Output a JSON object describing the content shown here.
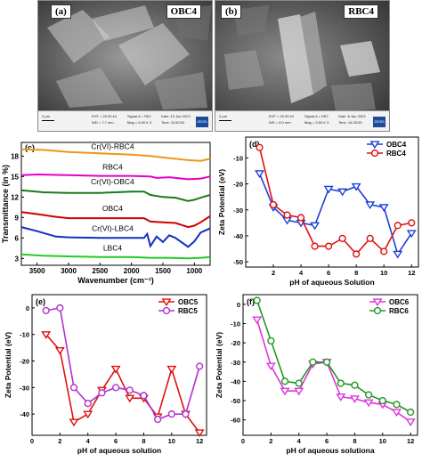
{
  "sem": [
    {
      "letter": "(a)",
      "label": "OBC4",
      "scale": "2 μm",
      "meta1": "EHT = 20.00 kV",
      "meta2": "WD = 7.7 mm",
      "meta3": "Signal A = SE2",
      "meta4": "Mag = 6.00 K X",
      "meta5": "Date :19 Jan 2023",
      "meta6": "Time :11:50:51",
      "brand": "ZEISS"
    },
    {
      "letter": "(b)",
      "label": "RBC4",
      "scale": "2 μm",
      "meta1": "EHT = 20.00 kV",
      "meta2": "WD = 8.0 mm",
      "meta3": "Signal A = SE2",
      "meta4": "Mag = 3.50 K X",
      "meta5": "Date :6 Jan 2023",
      "meta6": "Time :14:33:53",
      "brand": "ZEISS"
    }
  ],
  "chart_data": [
    {
      "panel": "(c)",
      "type": "line",
      "xlabel": "Wavenumber (cm⁻¹)",
      "ylabel": "Transmittance (in %)",
      "xticks": [
        "3500",
        "3000",
        "2500",
        "2000",
        "1500",
        "1000"
      ],
      "yticks": [
        "3",
        "6",
        "9",
        "12",
        "15",
        "18"
      ],
      "xlim": [
        3750,
        750
      ],
      "ylim": [
        2,
        20
      ],
      "series": [
        {
          "name": "Cr(VI)-RBC4",
          "color": "#f0951a",
          "points": [
            [
              3750,
              19.0
            ],
            [
              3400,
              18.9
            ],
            [
              3000,
              18.6
            ],
            [
              2500,
              18.4
            ],
            [
              2000,
              18.2
            ],
            [
              1700,
              18.0
            ],
            [
              1400,
              17.7
            ],
            [
              1100,
              17.4
            ],
            [
              900,
              17.3
            ],
            [
              750,
              17.6
            ]
          ]
        },
        {
          "name": "RBC4",
          "color": "#e000c8",
          "points": [
            [
              3750,
              15.2
            ],
            [
              3500,
              15.3
            ],
            [
              3000,
              15.2
            ],
            [
              2500,
              15.1
            ],
            [
              2000,
              15.1
            ],
            [
              1700,
              15.0
            ],
            [
              1600,
              14.8
            ],
            [
              1400,
              14.9
            ],
            [
              1100,
              14.6
            ],
            [
              900,
              14.7
            ],
            [
              750,
              15.0
            ]
          ]
        },
        {
          "name": "Cr(VI)-OBC4",
          "color": "#1a7a1a",
          "points": [
            [
              3750,
              13.0
            ],
            [
              3400,
              12.7
            ],
            [
              3000,
              12.6
            ],
            [
              2500,
              12.6
            ],
            [
              2000,
              12.8
            ],
            [
              1800,
              12.8
            ],
            [
              1700,
              12.3
            ],
            [
              1500,
              12.0
            ],
            [
              1300,
              11.9
            ],
            [
              1100,
              11.4
            ],
            [
              1000,
              11.6
            ],
            [
              900,
              11.9
            ],
            [
              750,
              12.3
            ]
          ]
        },
        {
          "name": "OBC4",
          "color": "#d00000",
          "points": [
            [
              3750,
              9.8
            ],
            [
              3500,
              9.5
            ],
            [
              3200,
              9.1
            ],
            [
              3000,
              8.9
            ],
            [
              2500,
              8.9
            ],
            [
              2000,
              8.9
            ],
            [
              1800,
              8.9
            ],
            [
              1700,
              8.4
            ],
            [
              1500,
              8.3
            ],
            [
              1300,
              8.2
            ],
            [
              1100,
              7.6
            ],
            [
              1000,
              7.8
            ],
            [
              900,
              8.3
            ],
            [
              750,
              9.2
            ]
          ]
        },
        {
          "name": "Cr(VI)-LBC4",
          "color": "#1030c0",
          "points": [
            [
              3750,
              7.6
            ],
            [
              3500,
              7.0
            ],
            [
              3200,
              6.2
            ],
            [
              3000,
              6.1
            ],
            [
              2500,
              6.0
            ],
            [
              2000,
              6.0
            ],
            [
              1800,
              6.0
            ],
            [
              1750,
              6.6
            ],
            [
              1700,
              4.8
            ],
            [
              1600,
              6.2
            ],
            [
              1500,
              5.4
            ],
            [
              1400,
              6.4
            ],
            [
              1300,
              6.0
            ],
            [
              1100,
              4.7
            ],
            [
              1000,
              5.5
            ],
            [
              900,
              6.8
            ],
            [
              750,
              7.4
            ]
          ]
        },
        {
          "name": "LBC4",
          "color": "#22cc22",
          "points": [
            [
              3750,
              3.6
            ],
            [
              3400,
              3.4
            ],
            [
              3000,
              3.3
            ],
            [
              2500,
              3.2
            ],
            [
              2000,
              3.2
            ],
            [
              1700,
              3.1
            ],
            [
              1400,
              3.1
            ],
            [
              1100,
              3.0
            ],
            [
              900,
              3.1
            ],
            [
              750,
              3.2
            ]
          ]
        }
      ]
    },
    {
      "panel": "(d)",
      "type": "line",
      "xlabel": "pH of aqueous Solution",
      "ylabel": "Zeta Potential (eV)",
      "xticks": [
        "2",
        "4",
        "6",
        "8",
        "10",
        "12"
      ],
      "yticks": [
        "-50",
        "-40",
        "-30",
        "-20",
        "-10"
      ],
      "xlim": [
        0,
        12.5
      ],
      "ylim": [
        -52,
        -2
      ],
      "series": [
        {
          "name": "OBC4",
          "color": "#1c3fd6",
          "marker": "triangle-down",
          "x": [
            1,
            2,
            3,
            4,
            5,
            6,
            7,
            8,
            9,
            10,
            11,
            12
          ],
          "y": [
            -16,
            -29,
            -34,
            -35,
            -36,
            -22,
            -23,
            -21,
            -28,
            -29,
            -47,
            -39
          ]
        },
        {
          "name": "RBC4",
          "color": "#e01010",
          "marker": "circle",
          "x": [
            1,
            2,
            3,
            4,
            5,
            6,
            7,
            8,
            9,
            10,
            11,
            12
          ],
          "y": [
            -6,
            -28,
            -32,
            -33,
            -44,
            -44,
            -41,
            -47,
            -41,
            -46,
            -36,
            -35
          ]
        }
      ]
    },
    {
      "panel": "(e)",
      "type": "line",
      "xlabel": "pH of aqueous solution",
      "ylabel": "Zeta Potential (eV)",
      "xticks": [
        "0",
        "2",
        "4",
        "6",
        "8",
        "10",
        "12"
      ],
      "yticks": [
        "-40",
        "-30",
        "-20",
        "-10",
        "0"
      ],
      "xlim": [
        0,
        12.5
      ],
      "ylim": [
        -48,
        5
      ],
      "series": [
        {
          "name": "OBC5",
          "color": "#e01010",
          "marker": "triangle-down",
          "x": [
            1,
            2,
            3,
            4,
            5,
            6,
            7,
            8,
            9,
            10,
            11,
            12
          ],
          "y": [
            -10,
            -16,
            -43,
            -40,
            -31,
            -23,
            -34,
            -34,
            -41,
            -23,
            -40,
            -47
          ]
        },
        {
          "name": "RBC5",
          "color": "#b030d0",
          "marker": "circle",
          "x": [
            1,
            2,
            3,
            4,
            5,
            6,
            7,
            8,
            9,
            10,
            11,
            12
          ],
          "y": [
            -1,
            0,
            -30,
            -36,
            -32,
            -30,
            -31,
            -33,
            -42,
            -40,
            -40,
            -22
          ]
        }
      ]
    },
    {
      "panel": "(f)",
      "type": "line",
      "xlabel": "pH of aqueous solutiona",
      "ylabel": "Zeta Potential (eV)",
      "xticks": [
        "0",
        "2",
        "4",
        "6",
        "8",
        "10",
        "12"
      ],
      "yticks": [
        "-60",
        "-50",
        "-40",
        "-30",
        "-20",
        "-10",
        "0"
      ],
      "xlim": [
        0,
        12.5
      ],
      "ylim": [
        -68,
        5
      ],
      "series": [
        {
          "name": "OBC6",
          "color": "#e033e0",
          "marker": "triangle-down",
          "x": [
            1,
            2,
            3,
            4,
            5,
            6,
            7,
            8,
            9,
            10,
            11,
            12
          ],
          "y": [
            -8,
            -32,
            -45,
            -45,
            -31,
            -30,
            -48,
            -49,
            -51,
            -52,
            -56,
            -61
          ]
        },
        {
          "name": "RBC6",
          "color": "#229922",
          "marker": "circle",
          "x": [
            1,
            2,
            3,
            4,
            5,
            6,
            7,
            8,
            9,
            10,
            11,
            12
          ],
          "y": [
            2,
            -19,
            -40,
            -41,
            -30,
            -30,
            -41,
            -42,
            -47,
            -50,
            -52,
            -56
          ]
        }
      ]
    }
  ]
}
